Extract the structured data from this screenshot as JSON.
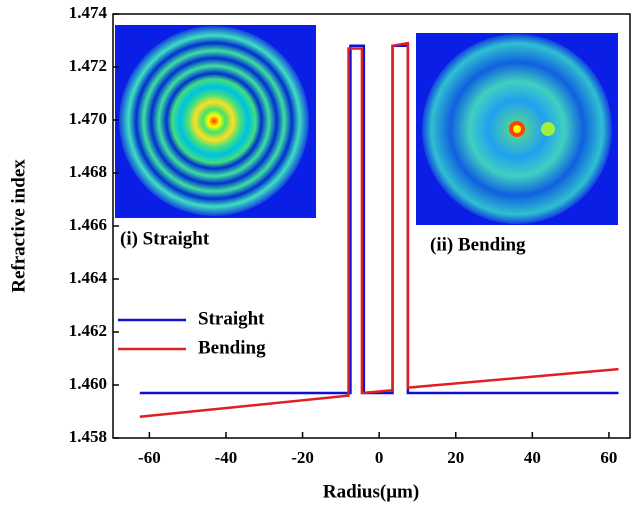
{
  "chart_data": {
    "type": "line",
    "x_label": "Radius(μm)",
    "y_label": "Refractive index",
    "annotations": [
      "(i) Straight",
      "(ii) Bending"
    ],
    "series": [
      {
        "name": "Straight",
        "color": "#1010d0",
        "x": [
          -62.5,
          -7.5,
          -7.5,
          -4,
          -4,
          3.5,
          3.5,
          7.5,
          7.5,
          62.5
        ],
        "values": [
          1.4597,
          1.4597,
          1.4728,
          1.4728,
          1.4597,
          1.4597,
          1.4728,
          1.4728,
          1.4597,
          1.4597
        ]
      },
      {
        "name": "Bending",
        "color": "#e02020",
        "x": [
          -62.5,
          -8,
          -8,
          -4.5,
          -4.5,
          3.5,
          3.5,
          7.5,
          7.5,
          62.5
        ],
        "values": [
          1.4588,
          1.4596,
          1.4727,
          1.4727,
          1.4597,
          1.4598,
          1.4728,
          1.4729,
          1.4599,
          1.4606
        ]
      }
    ],
    "xlim": [
      -69.5,
      65.5
    ],
    "xticks": [
      -60,
      -40,
      -20,
      0,
      20,
      40,
      60
    ],
    "ylim": [
      1.458,
      1.474
    ],
    "yticks": [
      1.458,
      {
        "value": 1.46,
        "label": "1.460"
      },
      1.462,
      1.464,
      1.466,
      1.468,
      {
        "value": 1.47,
        "label": "1.470"
      },
      1.472,
      1.474
    ],
    "legend": "upper-left"
  }
}
